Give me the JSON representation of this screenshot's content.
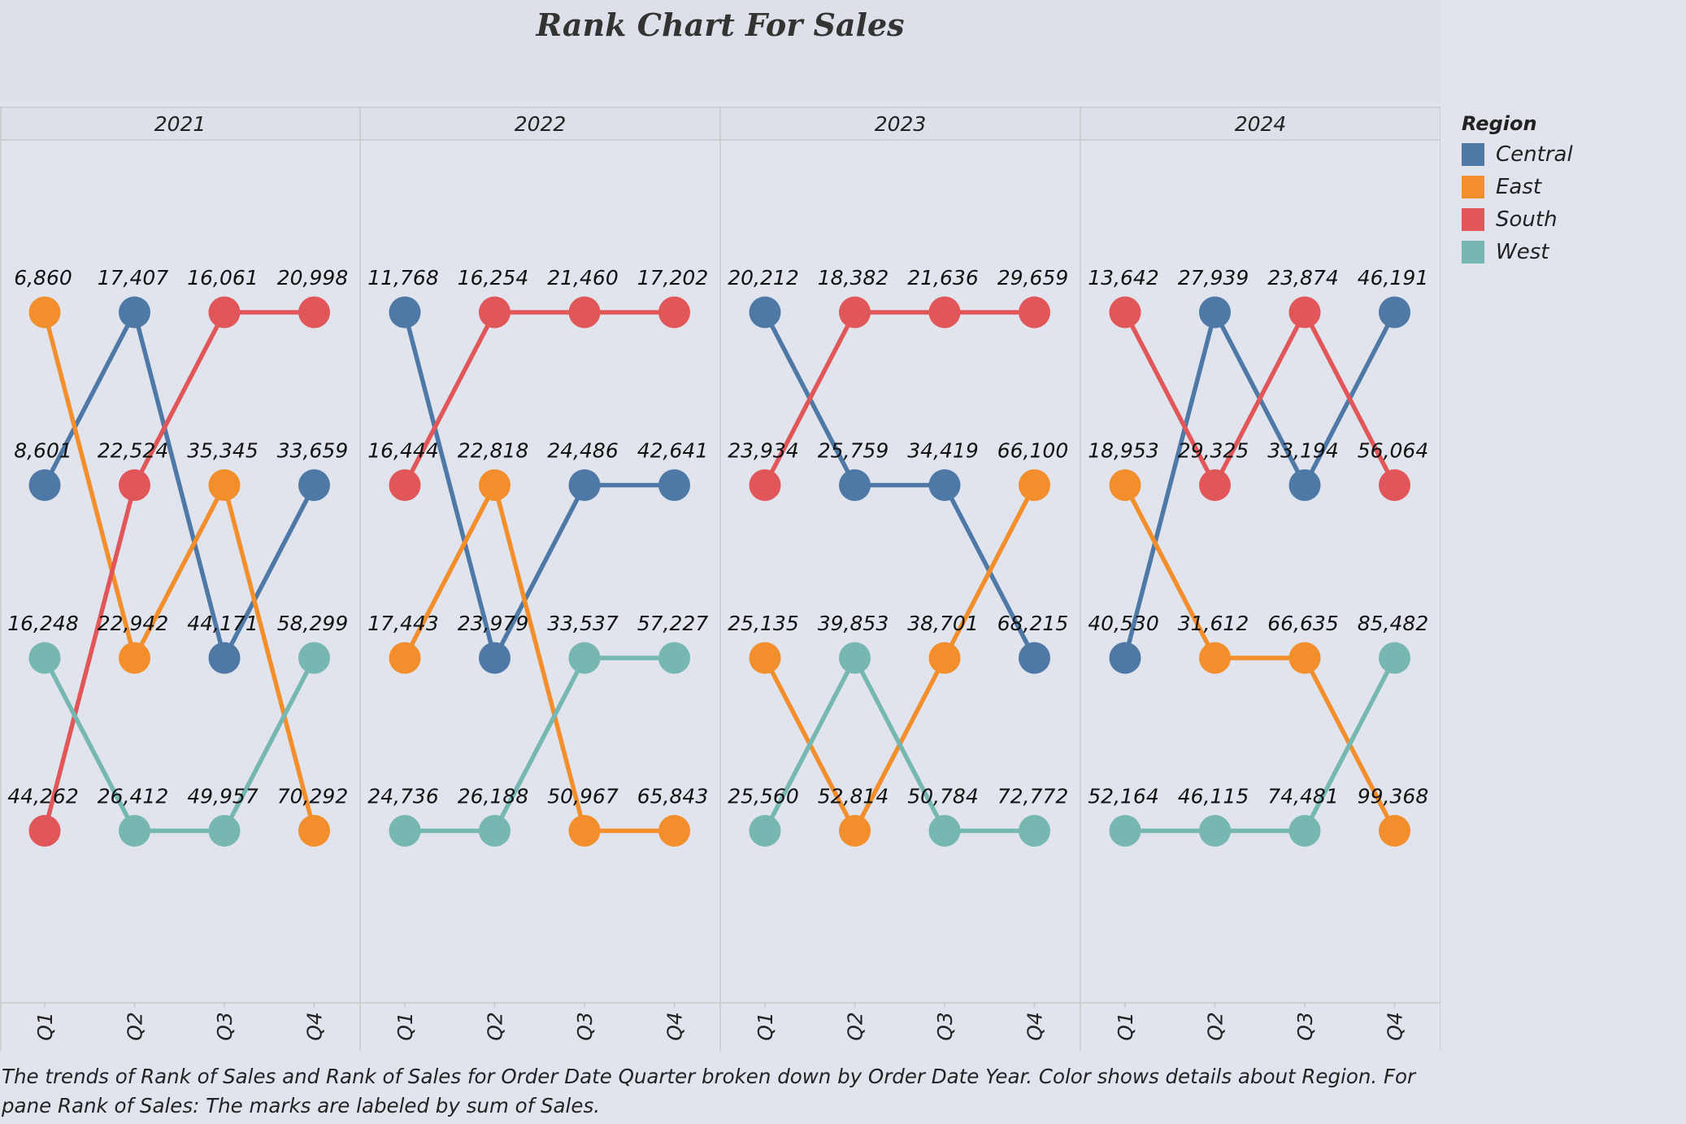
{
  "title": "Rank Chart For Sales",
  "caption": "The trends of Rank of Sales and Rank of Sales for Order Date Quarter broken down by Order Date Year.  Color shows details about Region.  For pane Rank of Sales:  The marks are labeled by sum of Sales.",
  "legend": {
    "title": "Region",
    "items": [
      {
        "label": "Central",
        "color": "#4e79a7"
      },
      {
        "label": "East",
        "color": "#f28e2b"
      },
      {
        "label": "South",
        "color": "#e15759"
      },
      {
        "label": "West",
        "color": "#76b7b2"
      }
    ]
  },
  "chart_data": {
    "type": "line",
    "subtype": "rank chart (bump chart)",
    "title": "Rank Chart For Sales",
    "column_headers": [
      "2021",
      "2022",
      "2023",
      "2024"
    ],
    "quarters": [
      "Q1",
      "Q2",
      "Q3",
      "Q4"
    ],
    "y_axis": "rank (1 = top)",
    "rank_range": [
      1,
      4
    ],
    "grid": false,
    "legend_position": "right",
    "series": [
      {
        "name": "Central",
        "color": "#4e79a7",
        "ranks": [
          [
            2,
            1,
            3,
            2
          ],
          [
            1,
            3,
            2,
            2
          ],
          [
            1,
            2,
            2,
            3
          ],
          [
            3,
            1,
            2,
            1
          ]
        ],
        "sales": [
          [
            "8,601",
            "17,407",
            "44,171",
            "33,659"
          ],
          [
            "11,768",
            "23,979",
            "24,486",
            "42,641"
          ],
          [
            "20,212",
            "25,759",
            "34,419",
            "68,215"
          ],
          [
            "40,530",
            "27,939",
            "33,194",
            "46,191"
          ]
        ]
      },
      {
        "name": "East",
        "color": "#f28e2b",
        "ranks": [
          [
            1,
            3,
            2,
            4
          ],
          [
            3,
            2,
            4,
            4
          ],
          [
            3,
            4,
            3,
            2
          ],
          [
            2,
            3,
            3,
            4
          ]
        ],
        "sales": [
          [
            "6,860",
            "22,942",
            "35,345",
            "70,292"
          ],
          [
            "17,443",
            "22,818",
            "50,967",
            "65,843"
          ],
          [
            "25,135",
            "52,814",
            "38,701",
            "66,100"
          ],
          [
            "18,953",
            "31,612",
            "66,635",
            "99,368"
          ]
        ]
      },
      {
        "name": "South",
        "color": "#e15759",
        "ranks": [
          [
            4,
            2,
            1,
            1
          ],
          [
            2,
            1,
            1,
            1
          ],
          [
            2,
            1,
            1,
            1
          ],
          [
            1,
            2,
            1,
            2
          ]
        ],
        "sales": [
          [
            "44,262",
            "22,524",
            "16,061",
            "20,998"
          ],
          [
            "16,444",
            "16,254",
            "21,460",
            "17,202"
          ],
          [
            "23,934",
            "18,382",
            "21,636",
            "29,659"
          ],
          [
            "13,642",
            "29,325",
            "23,874",
            "56,064"
          ]
        ]
      },
      {
        "name": "West",
        "color": "#76b7b2",
        "ranks": [
          [
            3,
            4,
            4,
            3
          ],
          [
            4,
            4,
            3,
            3
          ],
          [
            4,
            3,
            4,
            4
          ],
          [
            4,
            4,
            4,
            3
          ]
        ],
        "sales": [
          [
            "16,248",
            "26,412",
            "49,957",
            "58,299"
          ],
          [
            "24,736",
            "26,188",
            "33,537",
            "57,227"
          ],
          [
            "25,560",
            "39,853",
            "50,784",
            "72,772"
          ],
          [
            "52,164",
            "46,115",
            "74,481",
            "85,482"
          ]
        ]
      }
    ]
  }
}
